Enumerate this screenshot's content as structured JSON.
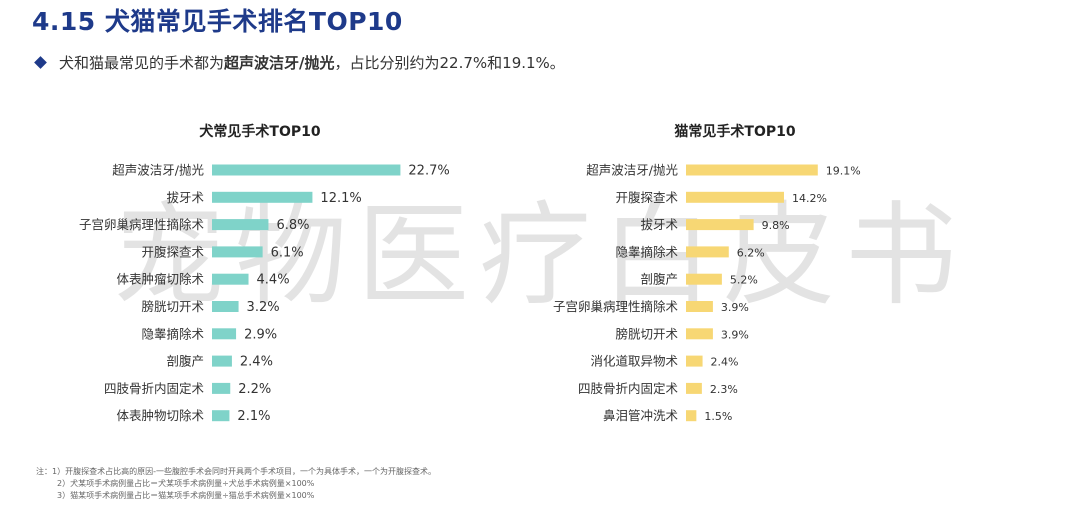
{
  "header": {
    "title": "4.15 犬猫常见手术排名TOP10",
    "subtitle_prefix": "犬和猫最常见的手术都为",
    "subtitle_bold": "超声波洁牙/抛光",
    "subtitle_suffix": "，占比分别约为22.7%和19.1%。"
  },
  "watermark": "宠物医疗白皮书",
  "notes": [
    "注：1）开腹探查术占比高的原因-一些腹腔手术会同时开具两个手术项目，一个为具体手术，一个为开腹探查术。",
    "2）犬某项手术病例量占比＝犬某项手术病例量÷犬总手术病例量×100%",
    "3）猫某项手术病例量占比＝猫某项手术病例量÷猫总手术病例量×100%"
  ],
  "colors": {
    "title": "#1e3a8a",
    "dog_bar": "#7fd3c9",
    "cat_bar": "#f7d774"
  },
  "chart_data": [
    {
      "type": "bar",
      "orientation": "horizontal",
      "title": "犬常见手术TOP10",
      "categories": [
        "超声波洁牙/抛光",
        "拔牙术",
        "子宫卵巢病理性摘除术",
        "开腹探查术",
        "体表肿瘤切除术",
        "膀胱切开术",
        "隐睾摘除术",
        "剖腹产",
        "四肢骨折内固定术",
        "体表肿物切除术"
      ],
      "values": [
        22.7,
        12.1,
        6.8,
        6.1,
        4.4,
        3.2,
        2.9,
        2.4,
        2.2,
        2.1
      ],
      "value_labels": [
        "22.7%",
        "12.1%",
        "6.8%",
        "6.1%",
        "4.4%",
        "3.2%",
        "2.9%",
        "2.4%",
        "2.2%",
        "2.1%"
      ],
      "unit": "%",
      "color": "#7fd3c9"
    },
    {
      "type": "bar",
      "orientation": "horizontal",
      "title": "猫常见手术TOP10",
      "categories": [
        "超声波洁牙/抛光",
        "开腹探查术",
        "拔牙术",
        "隐睾摘除术",
        "剖腹产",
        "子宫卵巢病理性摘除术",
        "膀胱切开术",
        "消化道取异物术",
        "四肢骨折内固定术",
        "鼻泪管冲洗术"
      ],
      "values": [
        19.1,
        14.2,
        9.8,
        6.2,
        5.2,
        3.9,
        3.9,
        2.4,
        2.3,
        1.5
      ],
      "value_labels": [
        "19.1%",
        "14.2%",
        "9.8%",
        "6.2%",
        "5.2%",
        "3.9%",
        "3.9%",
        "2.4%",
        "2.3%",
        "1.5%"
      ],
      "unit": "%",
      "color": "#f7d774"
    }
  ]
}
